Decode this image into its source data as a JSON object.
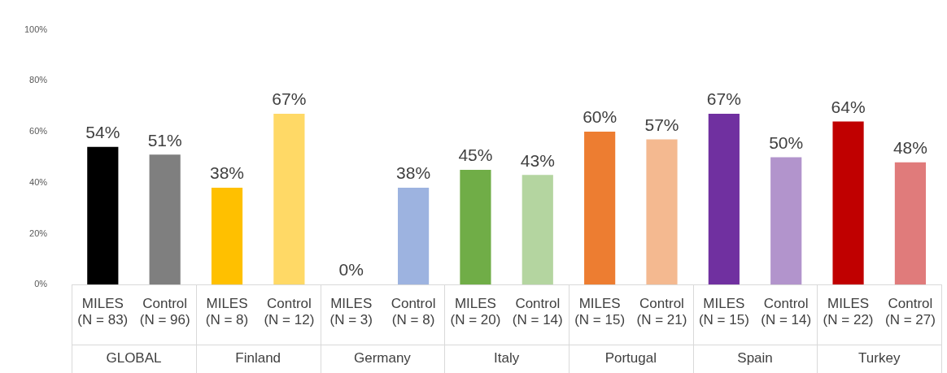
{
  "chart_data": {
    "type": "bar",
    "categories": [
      "MILES (N = 83)",
      "Control (N = 96)",
      "MILES (N = 8)",
      "Control (N = 12)",
      "MILES (N = 3)",
      "Control (N = 8)",
      "MILES (N = 20)",
      "Control (N = 14)",
      "MILES (N = 15)",
      "Control (N = 21)",
      "MILES (N = 15)",
      "Control (N = 14)",
      "MILES (N = 22)",
      "Control (N = 27)"
    ],
    "values": [
      54,
      51,
      38,
      67,
      0,
      38,
      45,
      43,
      60,
      57,
      67,
      50,
      64,
      48
    ],
    "value_labels": [
      "54%",
      "51%",
      "38%",
      "67%",
      "0%",
      "38%",
      "45%",
      "43%",
      "60%",
      "57%",
      "67%",
      "50%",
      "64%",
      "48%"
    ],
    "colors": [
      "#000000",
      "#7f7f7f",
      "#ffc000",
      "#ffd966",
      "#4472c4",
      "#9db3e0",
      "#70ad47",
      "#b4d5a0",
      "#ed7d31",
      "#f4b990",
      "#7030a0",
      "#b294cc",
      "#c00000",
      "#e07b7b"
    ],
    "annotations": [
      "GLOBAL",
      "Finland",
      "Germany",
      "Italy",
      "Portugal",
      "Spain",
      "Turkey"
    ],
    "ylim": [
      0,
      100
    ],
    "yticks": [
      {
        "value": 0,
        "label": "0%"
      },
      {
        "value": 20,
        "label": "20%"
      },
      {
        "value": 40,
        "label": "40%"
      },
      {
        "value": 60,
        "label": "60%"
      },
      {
        "value": 80,
        "label": "80%"
      },
      {
        "value": 100,
        "label": "100%"
      }
    ],
    "grid": false,
    "legend": false
  }
}
